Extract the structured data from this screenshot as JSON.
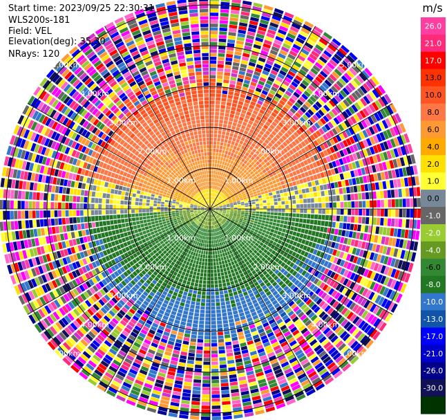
{
  "header": {
    "start_time": "Start time: 2023/09/25 22:30:31",
    "instrument": "WLS200s-181",
    "field": "Field: VEL",
    "elevation": "Elevation(deg): 35.30",
    "nrays": "NRays: 120"
  },
  "chart_data": {
    "type": "heatmap",
    "projection": "polar PPI",
    "field": "VEL",
    "units": "m/s",
    "elevation_deg": 35.3,
    "n_rays": 120,
    "range_rings_km": [
      1.0,
      2.0,
      3.0,
      4.0,
      5.0
    ],
    "ring_labels": [
      "1.00km",
      "2.00km",
      "3.00km",
      "4.00km",
      "5.00km"
    ],
    "radial_lines_deg": [
      0,
      30,
      60,
      90,
      120,
      150,
      180,
      210,
      240,
      270,
      300,
      330
    ],
    "colorbar": {
      "label": "m/s",
      "tick_labels": [
        "26.0",
        "21.0",
        "17.0",
        "13.0",
        "10.0",
        "8.0",
        "6.0",
        "4.0",
        "2.0",
        "1.0",
        "0.0",
        "-1.0",
        "-2.0",
        "-4.0",
        "-6.0",
        "-8.0",
        "-10.0",
        "-13.0",
        "-17.0",
        "-21.0",
        "-26.0",
        "-30.0"
      ],
      "colors": [
        "#ff3fa0",
        "#ff2a7a",
        "#ff0000",
        "#ff3300",
        "#ff5522",
        "#ff7744",
        "#ff9933",
        "#ffaa00",
        "#ffe000",
        "#ffff33",
        "#778899",
        "#666666",
        "#99cc33",
        "#669922",
        "#338833",
        "#227722",
        "#3377cc",
        "#1155aa",
        "#0000ff",
        "#0000cc",
        "#000088",
        "#111155",
        "#003300"
      ]
    },
    "description_regions": [
      {
        "sector": "north-near",
        "range_km": [
          0.0,
          1.0
        ],
        "value_ms": 6.0
      },
      {
        "sector": "north-mid",
        "range_km": [
          1.0,
          2.5
        ],
        "value_ms": 8.0
      },
      {
        "sector": "west-east-near",
        "range_km": [
          0.0,
          1.5
        ],
        "value_ms": 2.0
      },
      {
        "sector": "south-near",
        "range_km": [
          0.0,
          2.5
        ],
        "value_ms": -6.0
      },
      {
        "sector": "south-mid",
        "range_km": [
          1.0,
          2.5
        ],
        "value_ms": -8.0
      },
      {
        "sector": "outer-noise",
        "range_km": [
          2.5,
          5.1
        ],
        "value_ms": "noise"
      }
    ]
  }
}
